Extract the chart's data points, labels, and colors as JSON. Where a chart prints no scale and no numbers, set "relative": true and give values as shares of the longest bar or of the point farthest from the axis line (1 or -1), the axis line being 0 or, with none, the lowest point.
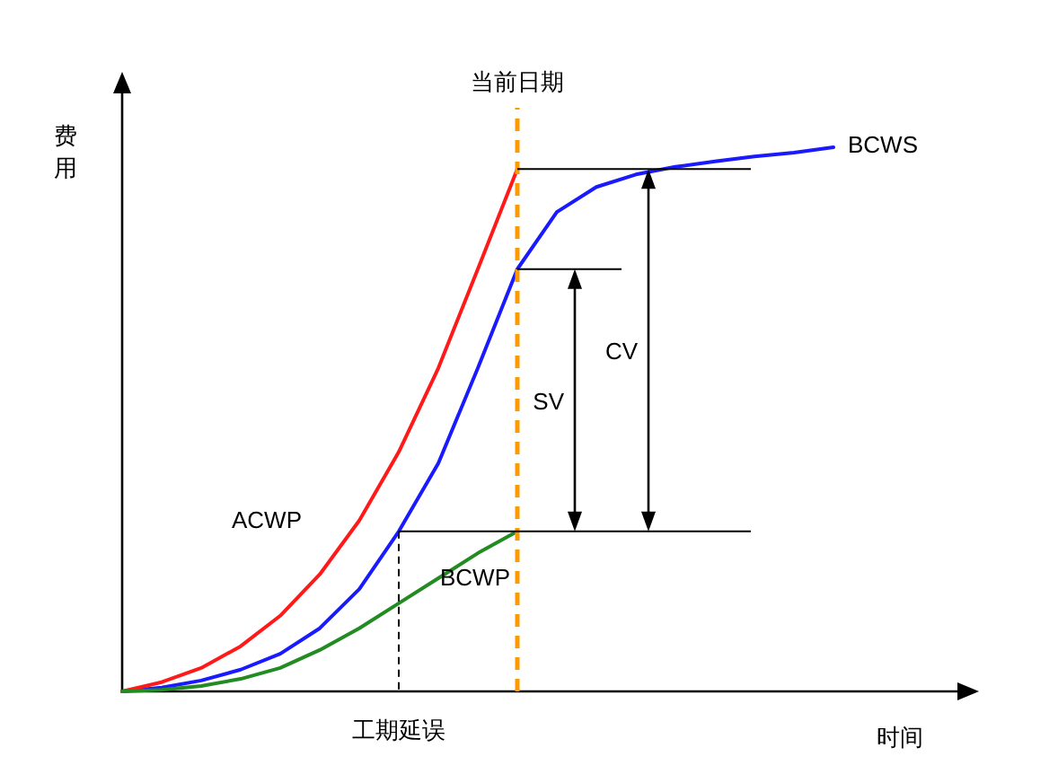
{
  "chart_data": {
    "type": "line",
    "relative": true,
    "xlabel": "时间",
    "ylabel": "费用",
    "categories": [
      null,
      null,
      null,
      null,
      null,
      null,
      null,
      null,
      null,
      null,
      null,
      null,
      null,
      null,
      null,
      null,
      null,
      null,
      null
    ],
    "series": [
      {
        "name": "BCWS",
        "color": "#1a1aff",
        "values": [
          0,
          0.007,
          0.02,
          0.04,
          0.069,
          0.116,
          0.188,
          0.294,
          0.419,
          0.594,
          0.776,
          0.881,
          0.927,
          0.95,
          0.964,
          0.974,
          0.983,
          0.99,
          1
        ]
      },
      {
        "name": "ACWP",
        "color": "#ff1a1a",
        "values": [
          0,
          0.017,
          0.043,
          0.083,
          0.139,
          0.215,
          0.314,
          0.44,
          0.594,
          0.776,
          0.96,
          null,
          null,
          null,
          null,
          null,
          null,
          null,
          null
        ]
      },
      {
        "name": "BCWP",
        "color": "#228b22",
        "values": [
          0,
          0.003,
          0.01,
          0.023,
          0.043,
          0.076,
          0.116,
          0.162,
          0.208,
          0.254,
          0.294,
          null,
          null,
          null,
          null,
          null,
          null,
          null,
          null
        ]
      }
    ],
    "ref_lines": [
      {
        "axis": "y",
        "value": 0.96,
        "color": "#000000"
      },
      {
        "axis": "y",
        "value": 0.776,
        "color": "#000000"
      },
      {
        "axis": "y",
        "value": 0.294,
        "color": "#000000"
      }
    ],
    "annotations": [
      "工期延误",
      "SV",
      "CV",
      "当前日期"
    ]
  }
}
